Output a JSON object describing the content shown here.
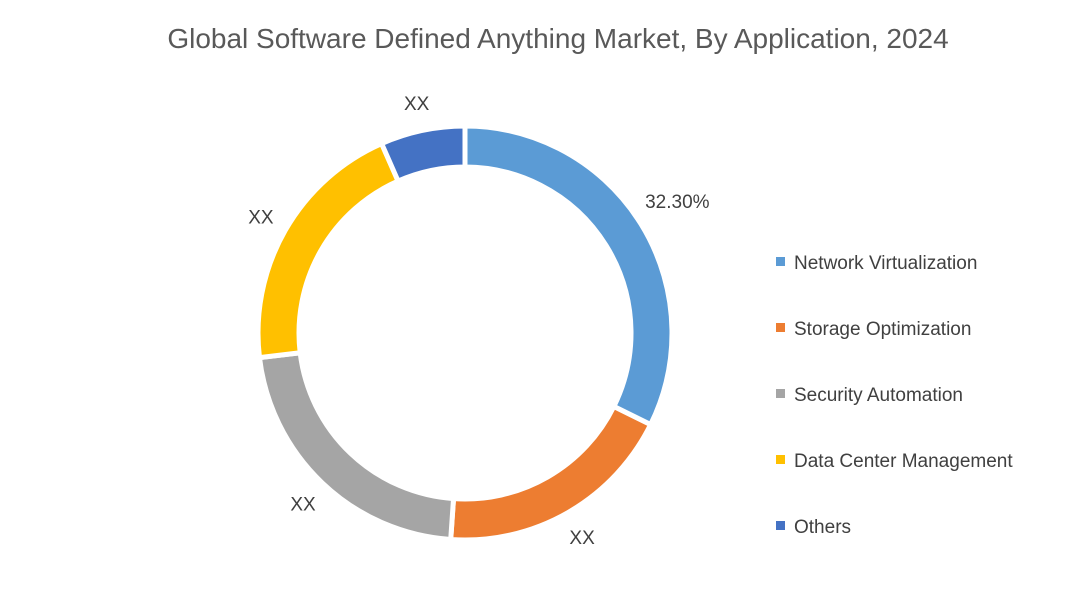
{
  "chart_data": {
    "type": "pie",
    "donut": true,
    "title": "Global Software Defined Anything Market, By Application, 2024",
    "categories": [
      "Network Virtualization",
      "Storage Optimization",
      "Security Automation",
      "Data Center Management",
      "Others"
    ],
    "values": [
      32.3,
      18.8,
      22.0,
      20.3,
      6.6
    ],
    "data_labels": [
      "32.30%",
      "XX",
      "XX",
      "XX",
      "XX"
    ],
    "colors": [
      "#5B9BD5",
      "#ED7D31",
      "#A5A5A5",
      "#FFC000",
      "#4472C4"
    ],
    "legend_position": "right",
    "start_angle": "top, clockwise"
  }
}
